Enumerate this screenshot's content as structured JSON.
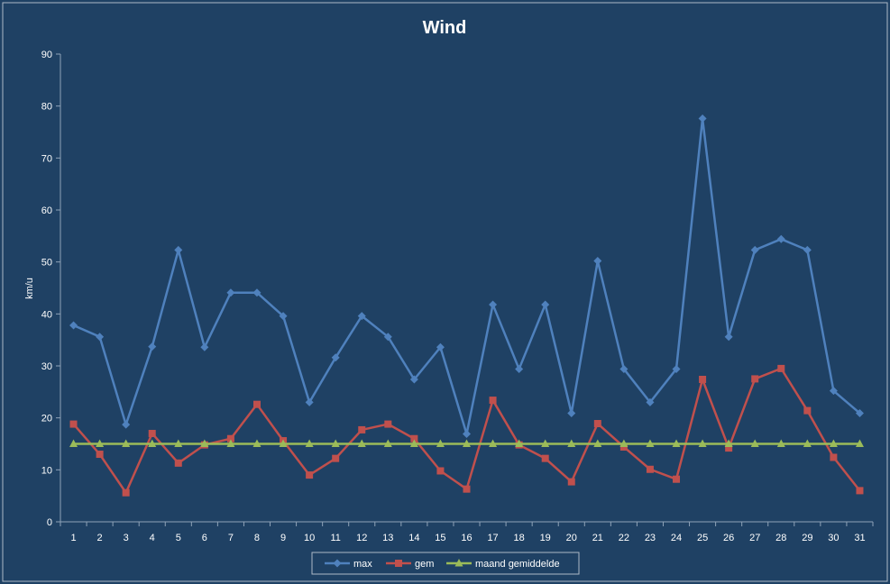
{
  "chart_data": {
    "type": "line",
    "title": "Wind",
    "ylabel": "km/u",
    "xlabel": "",
    "ylim": [
      0,
      90
    ],
    "y_ticks": [
      0,
      10,
      20,
      30,
      40,
      50,
      60,
      70,
      80,
      90
    ],
    "categories": [
      "1",
      "2",
      "3",
      "4",
      "5",
      "6",
      "7",
      "8",
      "9",
      "10",
      "11",
      "12",
      "13",
      "14",
      "15",
      "16",
      "17",
      "18",
      "19",
      "20",
      "21",
      "22",
      "23",
      "24",
      "25",
      "26",
      "27",
      "28",
      "29",
      "30",
      "31"
    ],
    "grid": false,
    "legend_position": "bottom",
    "colors": {
      "background": "#1f4164",
      "plot_border": "#aeb9c6",
      "axis": "#8fa3b8"
    },
    "series": [
      {
        "name": "max",
        "color": "#4f81bd",
        "marker": "diamond",
        "values": [
          37.8,
          35.6,
          18.7,
          33.7,
          52.3,
          33.6,
          44.1,
          44.1,
          39.6,
          23.0,
          31.6,
          39.6,
          35.6,
          27.4,
          33.6,
          16.9,
          41.8,
          29.4,
          41.8,
          20.9,
          50.2,
          29.4,
          23.0,
          29.4,
          77.6,
          35.6,
          52.3,
          54.4,
          52.3,
          25.2,
          20.9
        ]
      },
      {
        "name": "gem",
        "color": "#c0504d",
        "marker": "square",
        "values": [
          18.8,
          13.0,
          5.6,
          17.0,
          11.3,
          14.8,
          16.0,
          22.6,
          15.6,
          9.0,
          12.2,
          17.7,
          18.8,
          16.0,
          9.8,
          6.3,
          23.4,
          14.8,
          12.2,
          7.7,
          18.9,
          14.4,
          10.1,
          8.2,
          27.4,
          14.2,
          27.5,
          29.5,
          21.4,
          12.4,
          6.0
        ]
      },
      {
        "name": "maand gemiddelde",
        "color": "#9bbb59",
        "marker": "triangle",
        "values": [
          15.0,
          15.0,
          15.0,
          15.0,
          15.0,
          15.0,
          15.0,
          15.0,
          15.0,
          15.0,
          15.0,
          15.0,
          15.0,
          15.0,
          15.0,
          15.0,
          15.0,
          15.0,
          15.0,
          15.0,
          15.0,
          15.0,
          15.0,
          15.0,
          15.0,
          15.0,
          15.0,
          15.0,
          15.0,
          15.0,
          15.0
        ]
      }
    ]
  }
}
